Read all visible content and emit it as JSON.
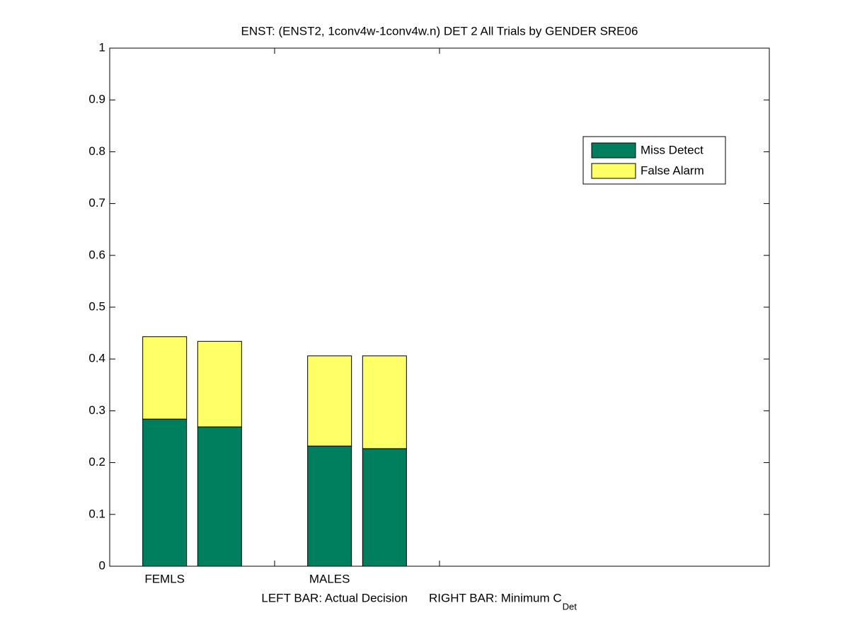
{
  "chart_data": {
    "type": "stacked-bar",
    "title": "ENST: (ENST2, 1conv4w-1conv4w.n) DET 2 All Trials by GENDER SRE06",
    "categories": [
      "FEMLS",
      null,
      "MALES",
      null
    ],
    "series": [
      {
        "name": "Miss Detect",
        "color": "#007f5f",
        "values": [
          0.284,
          0.269,
          0.232,
          0.227
        ]
      },
      {
        "name": "False Alarm",
        "color": "#ffff66",
        "values": [
          0.159,
          0.165,
          0.174,
          0.179
        ]
      }
    ],
    "xlabel": {
      "left": "LEFT BAR: Actual Decision",
      "right": "RIGHT BAR: Minimum C",
      "subscript": "Det"
    },
    "ylim": [
      0,
      1
    ],
    "yticks": [
      0,
      0.1,
      0.2,
      0.3,
      0.4,
      0.5,
      0.6,
      0.7,
      0.8,
      0.9,
      1
    ],
    "grid": false,
    "legend": "upper-right"
  }
}
